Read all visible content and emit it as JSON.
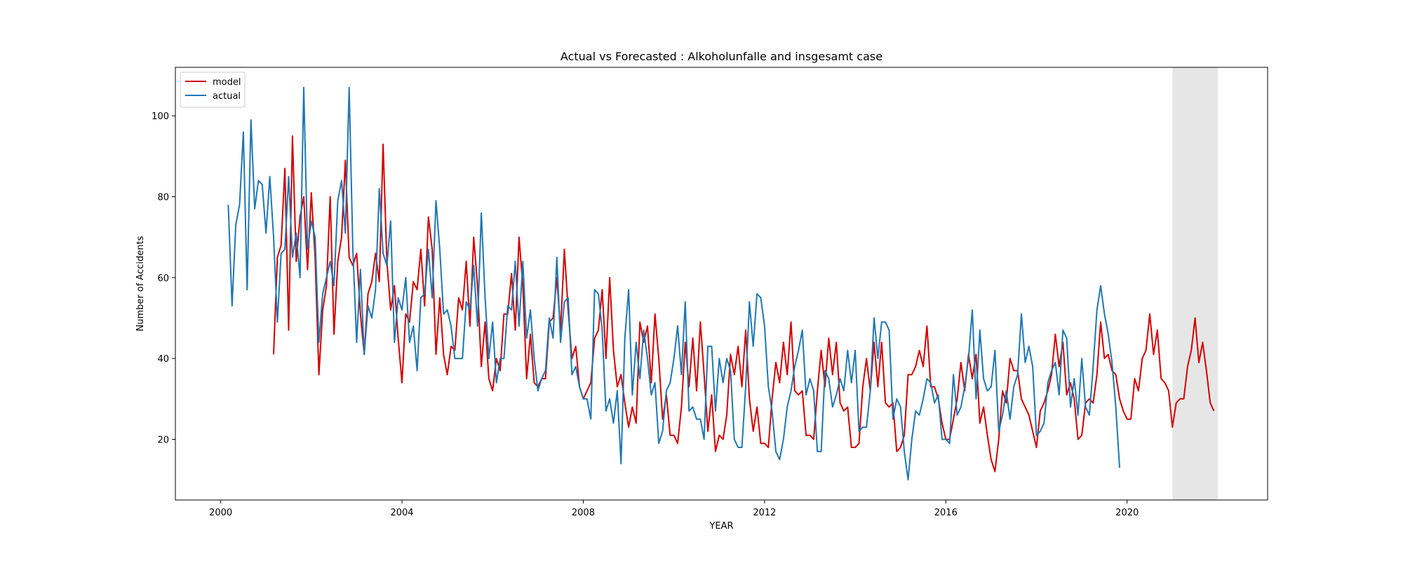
{
  "chart_data": {
    "type": "line",
    "title": "Actual vs Forecasted :  Alkoholunfalle and insgesamt case",
    "xlabel": "YEAR",
    "ylabel": "Number of Accidents",
    "xlim": [
      1999.0,
      2023.1
    ],
    "ylim": [
      5,
      112
    ],
    "x_ticks": [
      2000,
      2004,
      2008,
      2012,
      2016,
      2020
    ],
    "x_tick_labels": [
      "2000",
      "2004",
      "2008",
      "2012",
      "2016",
      "2020"
    ],
    "y_ticks": [
      20,
      40,
      60,
      80,
      100
    ],
    "y_tick_labels": [
      "20",
      "40",
      "60",
      "80",
      "100"
    ],
    "legend": {
      "placement": "top-left",
      "entries": [
        "model",
        "actual"
      ]
    },
    "forecast_region": {
      "x_start": 2021.0,
      "x_end": 2022.0,
      "color": "#e6e6e6"
    },
    "series": [
      {
        "name": "model",
        "color": "#d40000",
        "start": "2001-03",
        "values": [
          41,
          65,
          68,
          87,
          47,
          95,
          64,
          75,
          80,
          62,
          81,
          65,
          36,
          52,
          58,
          80,
          46,
          64,
          70,
          89,
          65,
          63,
          66,
          51,
          41,
          56,
          59,
          66,
          59,
          93,
          64,
          52,
          58,
          45,
          34,
          51,
          49,
          59,
          57,
          67,
          53,
          75,
          67,
          41,
          55,
          41,
          36,
          43,
          42,
          55,
          52,
          64,
          48,
          70,
          58,
          38,
          49,
          35,
          32,
          40,
          37,
          51,
          51,
          61,
          47,
          70,
          58,
          35,
          46,
          34,
          33,
          35,
          35,
          49,
          50,
          60,
          47,
          67,
          52,
          40,
          43,
          33,
          30,
          32,
          34,
          45,
          47,
          57,
          40,
          60,
          42,
          33,
          36,
          29,
          23,
          28,
          24,
          49,
          44,
          48,
          34,
          51,
          40,
          25,
          31,
          21,
          21,
          19,
          28,
          44,
          33,
          45,
          32,
          49,
          36,
          22,
          31,
          17,
          21,
          20,
          26,
          41,
          36,
          43,
          33,
          47,
          30,
          22,
          28,
          19,
          19,
          18,
          30,
          39,
          34,
          44,
          36,
          49,
          32,
          31,
          32,
          21,
          21,
          20,
          32,
          42,
          33,
          45,
          36,
          44,
          29,
          27,
          28,
          18,
          18,
          19,
          33,
          40,
          32,
          44,
          33,
          44,
          29,
          28,
          29,
          17,
          18,
          21,
          36,
          36,
          38,
          42,
          38,
          48,
          33,
          33,
          30,
          24,
          20,
          20,
          25,
          30,
          39,
          32,
          41,
          35,
          41,
          24,
          28,
          21,
          15,
          12,
          20,
          32,
          29,
          40,
          37,
          37,
          30,
          28,
          26,
          22,
          18,
          27,
          29,
          32,
          36,
          46,
          38,
          44,
          31,
          34,
          30,
          20,
          21,
          29,
          30,
          29,
          36,
          49,
          40,
          41,
          37,
          36,
          30,
          27,
          25,
          25,
          35,
          32,
          40,
          42,
          51,
          41,
          47,
          35,
          34,
          32,
          23,
          29,
          30,
          30,
          38,
          42,
          50,
          39,
          44,
          37,
          29,
          27
        ]
      },
      {
        "name": "actual",
        "color": "#1f77b4",
        "start": "2000-03",
        "values": [
          78,
          53,
          73,
          78,
          96,
          57,
          99,
          77,
          84,
          83,
          71,
          85,
          70,
          49,
          66,
          67,
          85,
          65,
          71,
          60,
          107,
          67,
          74,
          70,
          44,
          56,
          60,
          64,
          58,
          79,
          84,
          71,
          107,
          67,
          44,
          62,
          41,
          53,
          50,
          57,
          82,
          66,
          63,
          74,
          44,
          55,
          52,
          60,
          44,
          48,
          37,
          55,
          56,
          67,
          55,
          79,
          67,
          51,
          52,
          48,
          40,
          40,
          40,
          54,
          52,
          63,
          48,
          76,
          55,
          40,
          49,
          34,
          40,
          40,
          53,
          52,
          64,
          48,
          64,
          45,
          52,
          40,
          32,
          35,
          37,
          50,
          45,
          65,
          44,
          54,
          55,
          36,
          38,
          33,
          30,
          30,
          25,
          57,
          56,
          47,
          27,
          30,
          24,
          32,
          14,
          45,
          57,
          31,
          44,
          35,
          47,
          40,
          31,
          34,
          19,
          22,
          32,
          34,
          40,
          48,
          36,
          54,
          27,
          28,
          25,
          25,
          20,
          43,
          43,
          27,
          40,
          34,
          40,
          37,
          20,
          18,
          18,
          33,
          54,
          43,
          56,
          55,
          48,
          33,
          27,
          17,
          15,
          20,
          28,
          32,
          38,
          42,
          47,
          31,
          35,
          32,
          17,
          17,
          37,
          35,
          28,
          31,
          35,
          32,
          42,
          34,
          42,
          22,
          23,
          23,
          32,
          50,
          40,
          49,
          49,
          47,
          25,
          30,
          28,
          17,
          10,
          20,
          27,
          26,
          30,
          35,
          34,
          29,
          31,
          20,
          20,
          19,
          36,
          26,
          28,
          33,
          40,
          52,
          30,
          47,
          35,
          32,
          33,
          42,
          22,
          26,
          32,
          25,
          33,
          36,
          51,
          39,
          43,
          38,
          21,
          22,
          24,
          34,
          37,
          39,
          31,
          47,
          45,
          28,
          35,
          26,
          40,
          28,
          26,
          38,
          52,
          58,
          51,
          46,
          39,
          28,
          13
        ]
      }
    ]
  }
}
